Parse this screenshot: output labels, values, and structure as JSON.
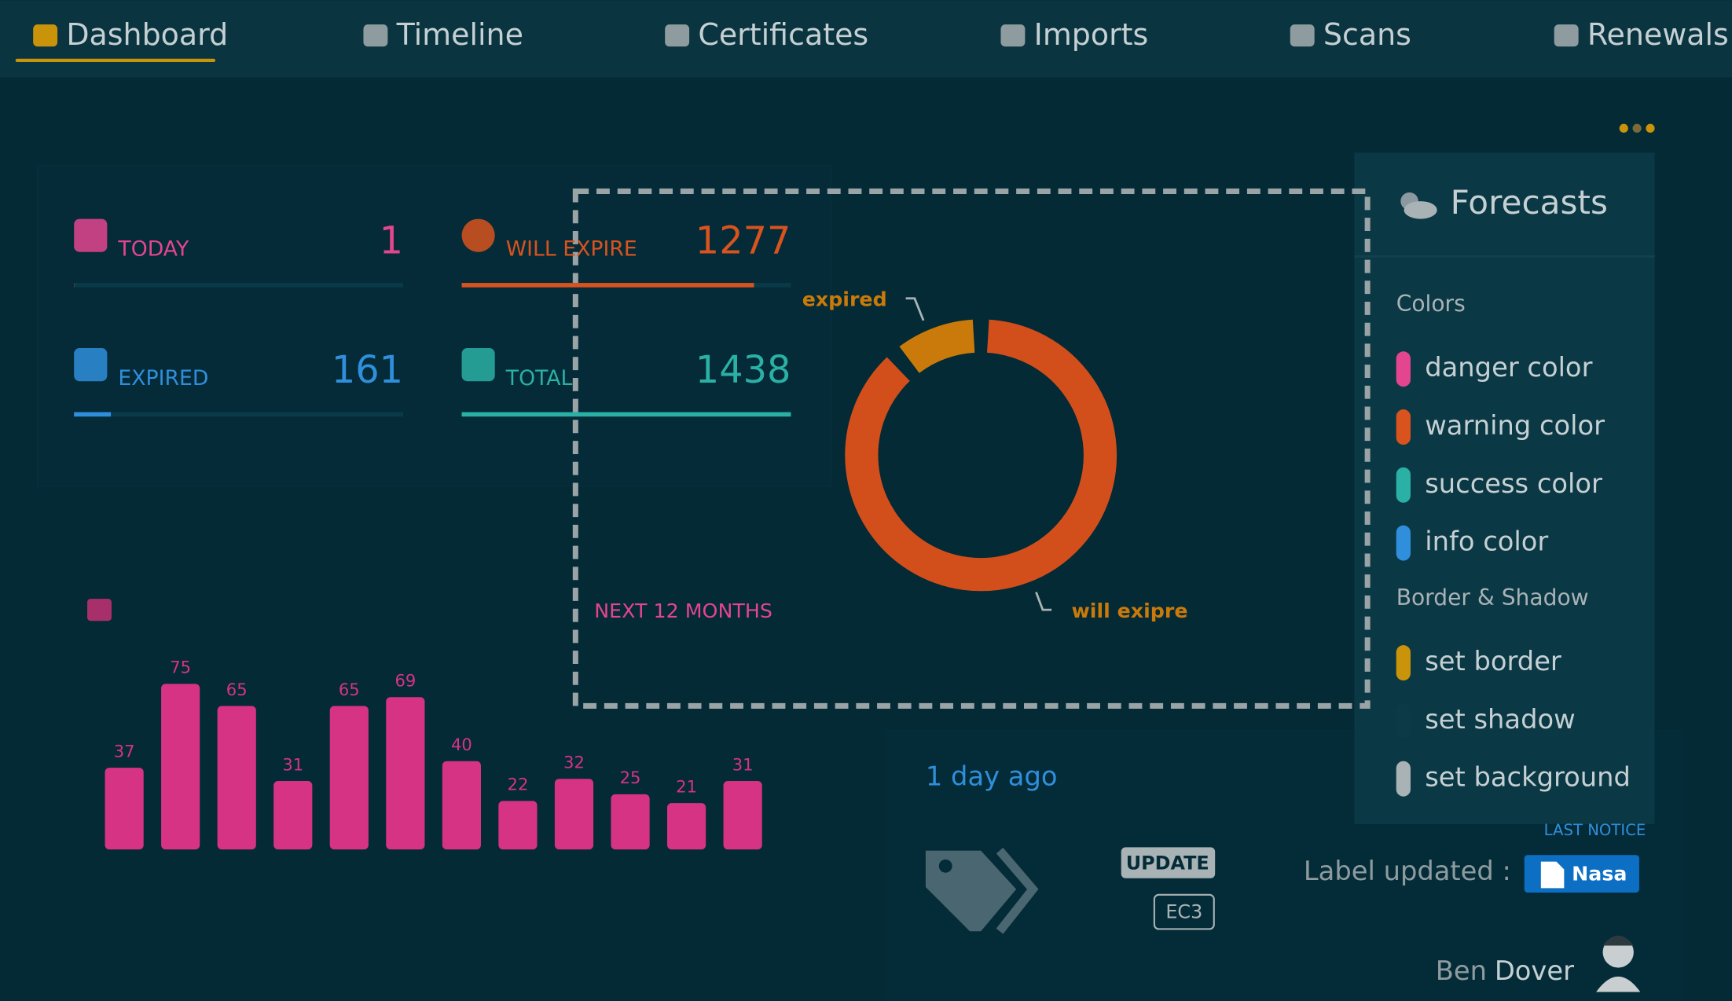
{
  "nav": {
    "items": [
      "Dashboard",
      "Timeline",
      "Certificates",
      "Imports",
      "Scans",
      "Renewals"
    ]
  },
  "stats": [
    {
      "label": "TODAY",
      "value": 1,
      "color": "#e4458f"
    },
    {
      "label": "WILL EXPIRE",
      "value": 1277,
      "color": "#d9531e"
    },
    {
      "label": "EXPIRED",
      "value": 161,
      "color": "#2f8fdc"
    },
    {
      "label": "TOTAL",
      "value": 1438,
      "color": "#2ab0a4"
    }
  ],
  "donut": {
    "labels": [
      "expired",
      "will exipre"
    ],
    "colors": [
      "#c97a0a",
      "#d24f1c"
    ]
  },
  "caption": "NEXT 12 MONTHS",
  "bar_chart": {
    "type": "bar",
    "values": [
      37,
      75,
      65,
      31,
      65,
      69,
      40,
      22,
      32,
      25,
      21,
      31
    ],
    "color": "#d63384"
  },
  "forecasts": {
    "title": "Forecasts",
    "sections": [
      {
        "title": "Colors",
        "items": [
          {
            "label": "danger color",
            "color": "#e4458f"
          },
          {
            "label": "warning color",
            "color": "#d9531e"
          },
          {
            "label": "success color",
            "color": "#2ab0a4"
          },
          {
            "label": "info color",
            "color": "#2f8fdc"
          }
        ]
      },
      {
        "title": "Border & Shadow",
        "items": [
          {
            "label": "set border",
            "color": "#c9940a"
          },
          {
            "label": "set shadow",
            "color": "#0c3a47"
          },
          {
            "label": "set background",
            "color": "#a9b3b6"
          }
        ]
      }
    ]
  },
  "activity": {
    "time": "1 day ago",
    "badge": "UPDATE",
    "code": "EC3",
    "notice": "LAST NOTICE",
    "text": "Label updated :",
    "tag": "Nasa",
    "user_first": "Ben",
    "user_last": "Dover"
  }
}
